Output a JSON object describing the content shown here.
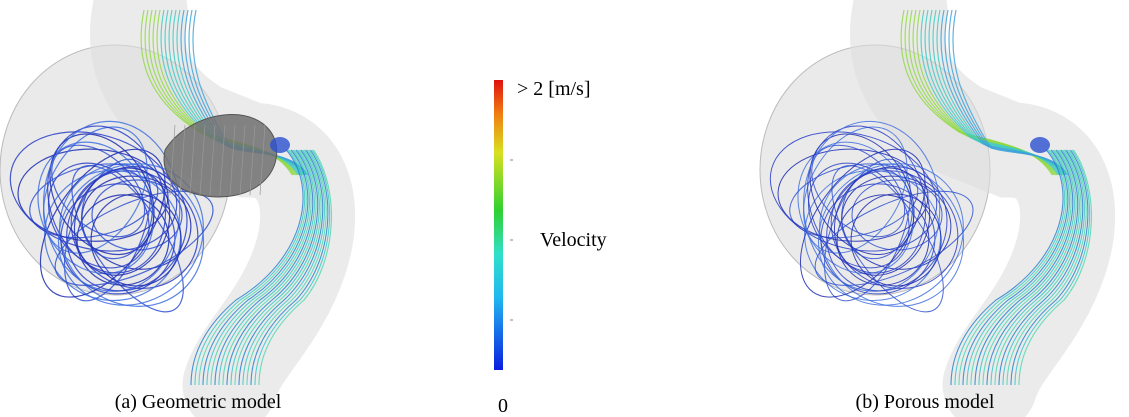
{
  "panels": [
    {
      "caption": "(a) Geometric model"
    },
    {
      "caption": "(b) Porous model"
    }
  ],
  "colorbar": {
    "max_label": "> 2 [m/s]",
    "title": "Velocity",
    "min_label": "0"
  }
}
